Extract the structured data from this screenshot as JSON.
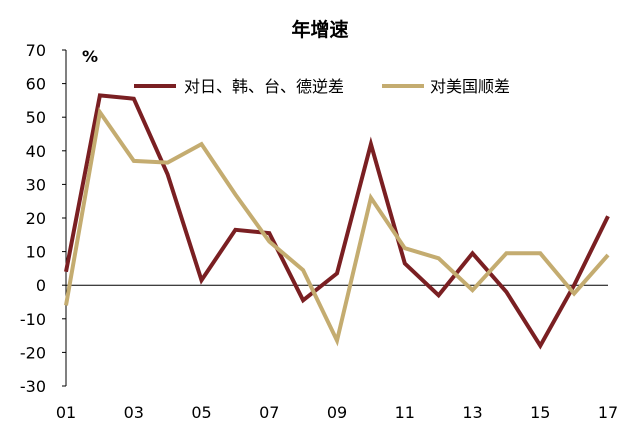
{
  "chart_data": {
    "type": "line",
    "title": "年增速",
    "unit_label": "%",
    "x": [
      "01",
      "02",
      "03",
      "04",
      "05",
      "06",
      "07",
      "08",
      "09",
      "10",
      "11",
      "12",
      "13",
      "14",
      "15",
      "16",
      "17"
    ],
    "x_tick_labels": [
      "01",
      "03",
      "05",
      "07",
      "09",
      "11",
      "13",
      "15",
      "17"
    ],
    "ylim": [
      -30,
      70
    ],
    "y_ticks": [
      70,
      60,
      50,
      40,
      30,
      20,
      10,
      0,
      -10,
      -20,
      -30
    ],
    "grid": false,
    "legend_position": "top",
    "series": [
      {
        "name": "对日、韩、台、德逆差",
        "color": "#7a1f22",
        "values": [
          4,
          56.5,
          55.5,
          33,
          1.5,
          16.5,
          15.5,
          -4.5,
          3.5,
          42,
          6.5,
          -3,
          9.5,
          -2,
          -18,
          0,
          20.5
        ]
      },
      {
        "name": "对美国顺差",
        "color": "#c4ac70",
        "values": [
          -6,
          51.5,
          37,
          36.5,
          42,
          27,
          13,
          4.5,
          -16.5,
          26,
          11,
          8,
          -1.5,
          9.5,
          9.5,
          -2.5,
          9
        ]
      }
    ]
  }
}
